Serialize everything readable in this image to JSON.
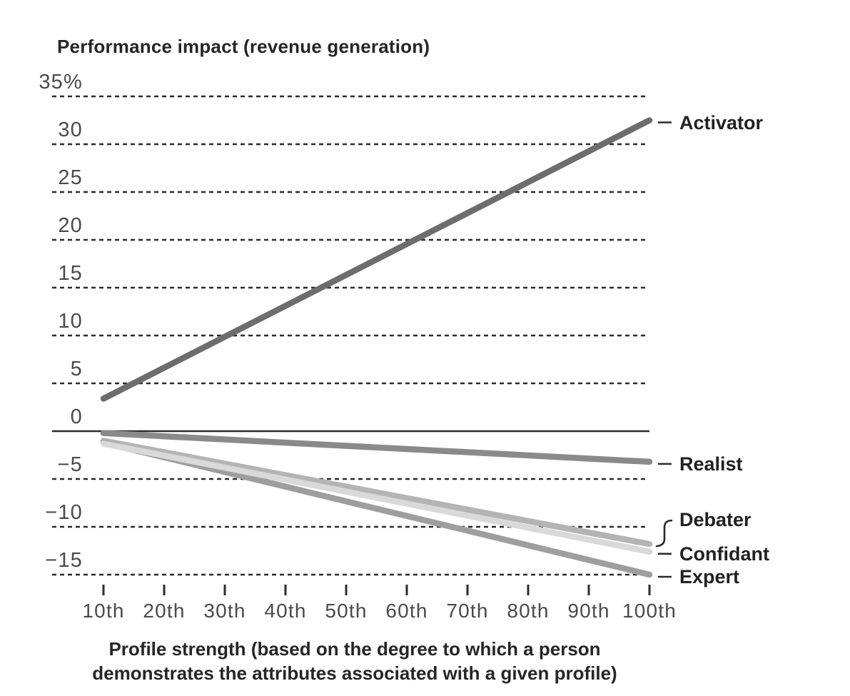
{
  "title": "Performance impact (revenue generation)",
  "caption": {
    "line1": "Profile strength (based on the degree to which a person",
    "line2": "demonstrates the attributes associated with a given profile)"
  },
  "chart_data": {
    "type": "line",
    "title": "Performance impact (revenue generation)",
    "xlabel": "Profile strength (based on the degree to which a person demonstrates the attributes associated with a given profile)",
    "ylabel": "Performance impact (revenue generation, %)",
    "grid": "dashed-horizontal",
    "legend_position": "right-end-labels",
    "ylim": [
      -17,
      36
    ],
    "zero_line": true,
    "y_ticks": [
      {
        "value": 35,
        "label": "35%"
      },
      {
        "value": 30,
        "label": "30"
      },
      {
        "value": 25,
        "label": "25"
      },
      {
        "value": 20,
        "label": "20"
      },
      {
        "value": 15,
        "label": "15"
      },
      {
        "value": 10,
        "label": "10"
      },
      {
        "value": 5,
        "label": "5"
      },
      {
        "value": 0,
        "label": "0"
      },
      {
        "value": -5,
        "label": "−5"
      },
      {
        "value": -10,
        "label": "−10"
      },
      {
        "value": -15,
        "label": "−15"
      }
    ],
    "x_percentiles": [
      10,
      20,
      30,
      40,
      50,
      60,
      70,
      80,
      90,
      100
    ],
    "x_tick_labels": [
      "10th",
      "20th",
      "30th",
      "40th",
      "50th",
      "60th",
      "70th",
      "80th",
      "90th",
      "100th"
    ],
    "series": [
      {
        "name": "Activator",
        "color": "#6d6d6d",
        "x": [
          10,
          100
        ],
        "values": [
          3.4,
          32.5
        ],
        "label_connector": "dash"
      },
      {
        "name": "Realist",
        "color": "#8a8a8a",
        "x": [
          10,
          100
        ],
        "values": [
          -0.2,
          -3.2
        ],
        "label_connector": "dash"
      },
      {
        "name": "Debater",
        "color": "#b4b4b4",
        "x": [
          10,
          100
        ],
        "values": [
          -1.0,
          -11.8
        ],
        "label_connector": "bracket"
      },
      {
        "name": "Expert",
        "color": "#9e9e9e",
        "x": [
          10,
          100
        ],
        "values": [
          -1.2,
          -15.0
        ],
        "label_connector": "dash"
      },
      {
        "name": "Confidant",
        "color": "#d9d9d9",
        "x": [
          10,
          100
        ],
        "values": [
          -1.3,
          -12.6
        ],
        "label_connector": "dash"
      }
    ],
    "axis_color": "#2b2b2b"
  }
}
